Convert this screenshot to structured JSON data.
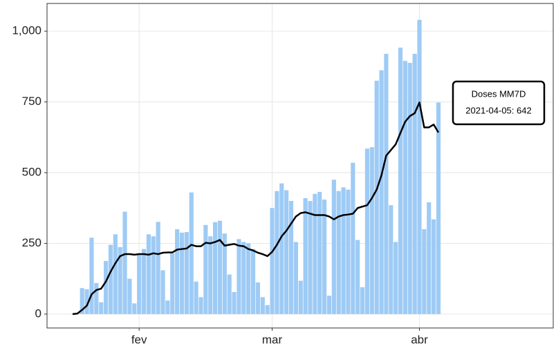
{
  "chart_data": {
    "type": "bar_line",
    "categories": [
      null,
      null,
      null,
      null,
      null,
      null,
      null,
      null,
      null,
      null,
      null,
      null,
      null,
      null,
      "fev",
      null,
      null,
      null,
      null,
      null,
      null,
      null,
      null,
      null,
      null,
      null,
      null,
      null,
      null,
      null,
      null,
      null,
      null,
      null,
      null,
      null,
      null,
      null,
      null,
      null,
      null,
      null,
      "mar",
      null,
      null,
      null,
      null,
      null,
      null,
      null,
      null,
      null,
      null,
      null,
      null,
      null,
      null,
      null,
      null,
      null,
      null,
      null,
      null,
      null,
      null,
      null,
      null,
      null,
      null,
      null,
      null,
      null,
      null,
      "abr",
      null,
      null,
      null,
      null
    ],
    "series": [
      {
        "name": "Doses",
        "color": "#9ecbf5",
        "values": [
          0,
          2,
          92,
          88,
          270,
          110,
          42,
          188,
          245,
          282,
          237,
          362,
          125,
          38,
          212,
          230,
          282,
          275,
          326,
          155,
          48,
          215,
          300,
          288,
          290,
          430,
          115,
          60,
          315,
          275,
          325,
          330,
          285,
          140,
          78,
          265,
          255,
          250,
          230,
          112,
          60,
          32,
          375,
          435,
          462,
          438,
          400,
          255,
          118,
          410,
          400,
          425,
          432,
          405,
          65,
          475,
          435,
          448,
          440,
          535,
          262,
          95,
          585,
          590,
          825,
          862,
          920,
          385,
          255,
          942,
          895,
          888,
          920,
          1040,
          300,
          395,
          335,
          748
        ]
      },
      {
        "name": "Doses MM7D",
        "color": "#000000",
        "values": [
          0,
          2,
          15,
          30,
          70,
          85,
          90,
          115,
          150,
          180,
          205,
          212,
          212,
          210,
          212,
          212,
          210,
          215,
          212,
          217,
          218,
          218,
          228,
          230,
          232,
          245,
          240,
          240,
          252,
          250,
          255,
          262,
          242,
          245,
          248,
          242,
          240,
          230,
          225,
          217,
          212,
          205,
          220,
          245,
          275,
          295,
          320,
          345,
          357,
          360,
          355,
          350,
          350,
          350,
          345,
          335,
          345,
          350,
          352,
          355,
          375,
          380,
          385,
          410,
          440,
          490,
          560,
          580,
          600,
          640,
          680,
          700,
          710,
          748,
          660,
          660,
          670,
          642
        ]
      }
    ],
    "ylim": [
      -49,
      1098
    ],
    "yticks": [
      0,
      250,
      500,
      750,
      {
        "value": 1000,
        "label": "1,000"
      }
    ],
    "grid": true,
    "annotation": {
      "title": "Doses MM7D",
      "text": "2021-04-05: 642"
    }
  }
}
